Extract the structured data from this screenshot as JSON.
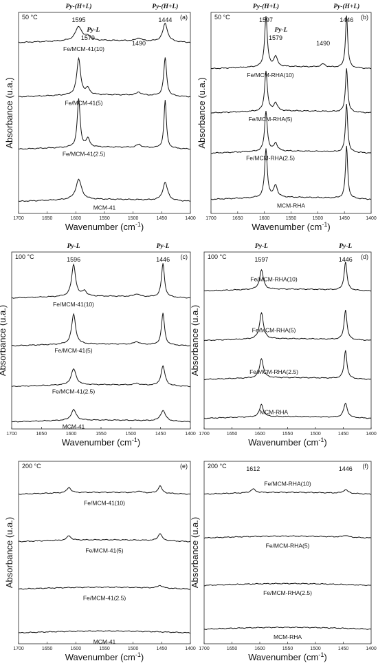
{
  "chart_data": [
    {
      "id": "a",
      "type": "line",
      "panel_label": "(a)",
      "temperature": "50 °C",
      "xlabel": "Wavenumber (cm$^{-1}$)",
      "ylabel": "Absorbance (u.a.)",
      "xlim": [
        1700,
        1400
      ],
      "x_ticks": [
        1700,
        1650,
        1600,
        1550,
        1500,
        1450,
        1400
      ],
      "assignments": [
        {
          "label": "Py-(H+L)",
          "x": 1595
        },
        {
          "label": "Py-(H+L)",
          "x": 1444
        }
      ],
      "annotations": [
        {
          "text": "1595",
          "x": 1595
        },
        {
          "text": "1444",
          "x": 1444
        },
        {
          "text": "Py-L",
          "x": 1579,
          "italic": true
        },
        {
          "text": "1579",
          "x": 1579
        },
        {
          "text": "1490",
          "x": 1490
        }
      ],
      "series": [
        {
          "name": "Fe/MCM-41(10)",
          "baseline": 0.85,
          "peaks": [
            [
              1595,
              0.07,
              7
            ],
            [
              1579,
              0.02,
              5
            ],
            [
              1490,
              0.015,
              5
            ],
            [
              1444,
              0.09,
              5
            ]
          ]
        },
        {
          "name": "Fe/MCM-41(5)",
          "baseline": 0.58,
          "peaks": [
            [
              1595,
              0.18,
              4
            ],
            [
              1579,
              0.03,
              4
            ],
            [
              1490,
              0.015,
              5
            ],
            [
              1444,
              0.19,
              3
            ]
          ]
        },
        {
          "name": "Fe/MCM-41(2.5)",
          "baseline": 0.32,
          "peaks": [
            [
              1595,
              0.24,
              3
            ],
            [
              1579,
              0.04,
              4
            ],
            [
              1490,
              0.015,
              5
            ],
            [
              1444,
              0.24,
              2.5
            ]
          ]
        },
        {
          "name": "MCM-41",
          "baseline": 0.06,
          "peaks": [
            [
              1595,
              0.1,
              6
            ],
            [
              1444,
              0.09,
              5
            ]
          ]
        }
      ]
    },
    {
      "id": "b",
      "type": "line",
      "panel_label": "(b)",
      "temperature": "50 °C",
      "xlabel": "Wavenumber (cm$^{-1}$)",
      "ylabel": "Absorbance (u.a.)",
      "xlim": [
        1700,
        1400
      ],
      "x_ticks": [
        1700,
        1650,
        1600,
        1550,
        1500,
        1450,
        1400
      ],
      "assignments": [
        {
          "label": "Py-(H+L)",
          "x": 1597
        },
        {
          "label": "Py-(H+L)",
          "x": 1446
        }
      ],
      "annotations": [
        {
          "text": "1597",
          "x": 1597
        },
        {
          "text": "1446",
          "x": 1446
        },
        {
          "text": "Py-L",
          "x": 1579,
          "italic": true
        },
        {
          "text": "1579",
          "x": 1579
        },
        {
          "text": "1490",
          "x": 1490
        }
      ],
      "series": [
        {
          "name": "Fe/MCM-RHA(10)",
          "baseline": 0.72,
          "peaks": [
            [
              1597,
              0.25,
              3
            ],
            [
              1579,
              0.05,
              4
            ],
            [
              1490,
              0.015,
              5
            ],
            [
              1446,
              0.26,
              2.5
            ]
          ]
        },
        {
          "name": "Fe/MCM-RHA(5)",
          "baseline": 0.5,
          "peaks": [
            [
              1597,
              0.2,
              3
            ],
            [
              1579,
              0.04,
              4
            ],
            [
              1446,
              0.22,
              2.5
            ]
          ]
        },
        {
          "name": "Fe/MCM-RHA(2.5)",
          "baseline": 0.3,
          "peaks": [
            [
              1597,
              0.2,
              3
            ],
            [
              1579,
              0.04,
              4
            ],
            [
              1446,
              0.24,
              2.5
            ]
          ]
        },
        {
          "name": "MCM-RHA",
          "baseline": 0.07,
          "peaks": [
            [
              1597,
              0.24,
              3
            ],
            [
              1579,
              0.06,
              4
            ],
            [
              1446,
              0.26,
              2.5
            ]
          ]
        }
      ]
    },
    {
      "id": "c",
      "type": "line",
      "panel_label": "(c)",
      "temperature": "100 °C",
      "xlabel": "Wavenumber (cm$^{-1}$)",
      "ylabel": "Absorbance (u.a.)",
      "xlim": [
        1700,
        1400
      ],
      "x_ticks": [
        1700,
        1650,
        1600,
        1550,
        1500,
        1450,
        1400
      ],
      "assignments": [
        {
          "label": "Py-L",
          "x": 1596
        },
        {
          "label": "Py-L",
          "x": 1446
        }
      ],
      "annotations": [
        {
          "text": "1596",
          "x": 1596
        },
        {
          "text": "1446",
          "x": 1446
        }
      ],
      "series": [
        {
          "name": "Fe/MCM-41(10)",
          "baseline": 0.74,
          "peaks": [
            [
              1596,
              0.18,
              4
            ],
            [
              1578,
              0.03,
              4
            ],
            [
              1490,
              0.015,
              5
            ],
            [
              1446,
              0.19,
              3
            ]
          ]
        },
        {
          "name": "Fe/MCM-41(5)",
          "baseline": 0.47,
          "peaks": [
            [
              1596,
              0.17,
              4
            ],
            [
              1490,
              0.015,
              5
            ],
            [
              1446,
              0.18,
              3
            ]
          ]
        },
        {
          "name": "Fe/MCM-41(2.5)",
          "baseline": 0.24,
          "peaks": [
            [
              1596,
              0.09,
              5
            ],
            [
              1490,
              0.01,
              5
            ],
            [
              1446,
              0.11,
              4
            ]
          ]
        },
        {
          "name": "MCM-41",
          "baseline": 0.04,
          "peaks": [
            [
              1596,
              0.06,
              5
            ],
            [
              1446,
              0.06,
              5
            ]
          ]
        }
      ]
    },
    {
      "id": "d",
      "type": "line",
      "panel_label": "(d)",
      "temperature": "100 °C",
      "xlabel": "Wavenumber (cm$^{-1}$)",
      "ylabel": "Absorbance (u.a.)",
      "xlim": [
        1700,
        1400
      ],
      "x_ticks": [
        1700,
        1650,
        1600,
        1550,
        1500,
        1450,
        1400
      ],
      "assignments": [
        {
          "label": "Py-L",
          "x": 1597
        },
        {
          "label": "Py-L",
          "x": 1446
        }
      ],
      "annotations": [
        {
          "text": "1597",
          "x": 1597
        },
        {
          "text": "1446",
          "x": 1446
        }
      ],
      "series": [
        {
          "name": "Fe/MCM-RHA(10)",
          "baseline": 0.78,
          "peaks": [
            [
              1597,
              0.11,
              4
            ],
            [
              1446,
              0.16,
              3
            ]
          ]
        },
        {
          "name": "Fe/MCM-RHA(5)",
          "baseline": 0.5,
          "peaks": [
            [
              1597,
              0.15,
              4
            ],
            [
              1446,
              0.17,
              3
            ]
          ]
        },
        {
          "name": "Fe/MCM-RHA(2.5)",
          "baseline": 0.28,
          "peaks": [
            [
              1597,
              0.11,
              4
            ],
            [
              1446,
              0.16,
              3
            ]
          ]
        },
        {
          "name": "MCM-RHA",
          "baseline": 0.06,
          "peaks": [
            [
              1597,
              0.07,
              4
            ],
            [
              1446,
              0.08,
              4
            ]
          ]
        }
      ]
    },
    {
      "id": "e",
      "type": "line",
      "panel_label": "(e)",
      "temperature": "200 °C",
      "xlabel": "Wavenumber (cm$^{-1}$)",
      "ylabel": "Absorbance (u.a.)",
      "xlim": [
        1700,
        1400
      ],
      "x_ticks": [
        1700,
        1650,
        1600,
        1550,
        1500,
        1450,
        1400
      ],
      "assignments": [],
      "annotations": [],
      "series": [
        {
          "name": "Fe/MCM-41(10)",
          "baseline": 0.82,
          "peaks": [
            [
              1612,
              0.03,
              4
            ],
            [
              1490,
              0.01,
              4
            ],
            [
              1453,
              0.04,
              4
            ]
          ]
        },
        {
          "name": "Fe/MCM-41(5)",
          "baseline": 0.56,
          "peaks": [
            [
              1612,
              0.025,
              4
            ],
            [
              1453,
              0.04,
              4
            ]
          ]
        },
        {
          "name": "Fe/MCM-41(2.5)",
          "baseline": 0.3,
          "peaks": [
            [
              1453,
              0.015,
              5
            ]
          ]
        },
        {
          "name": "MCM-41",
          "baseline": 0.06,
          "peaks": []
        }
      ]
    },
    {
      "id": "f",
      "type": "line",
      "panel_label": "(f)",
      "temperature": "200 °C",
      "xlabel": "Wavenumber (cm$^{-1}$)",
      "ylabel": "Absorbance (u.a.)",
      "xlim": [
        1700,
        1400
      ],
      "x_ticks": [
        1700,
        1650,
        1600,
        1550,
        1500,
        1450,
        1400
      ],
      "assignments": [],
      "annotations": [
        {
          "text": "1612",
          "x": 1612
        },
        {
          "text": "1446",
          "x": 1446
        }
      ],
      "series": [
        {
          "name": "Fe/MCM-RHA(10)",
          "baseline": 0.82,
          "peaks": [
            [
              1612,
              0.02,
              5
            ],
            [
              1446,
              0.02,
              5
            ]
          ]
        },
        {
          "name": "Fe/MCM-RHA(5)",
          "baseline": 0.58,
          "peaks": [
            [
              1446,
              0.01,
              5
            ]
          ]
        },
        {
          "name": "Fe/MCM-RHA(2.5)",
          "baseline": 0.32,
          "peaks": []
        },
        {
          "name": "MCM-RHA",
          "baseline": 0.08,
          "peaks": []
        }
      ]
    }
  ]
}
